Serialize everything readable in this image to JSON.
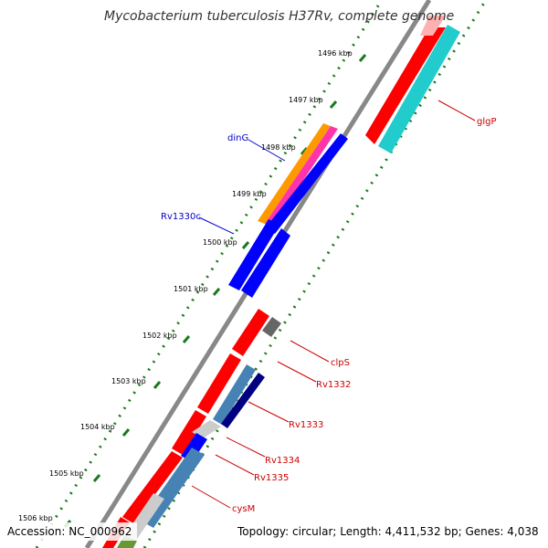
{
  "title": "Mycobacterium tuberculosis H37Rv, complete genome",
  "footer": {
    "accession": "Accession: NC_000962",
    "summary": "Topology: circular; Length: 4,411,532 bp; Genes: 4,038"
  },
  "ticks": [
    "1496 kbp",
    "1497 kbp",
    "1498 kbp",
    "1499 kbp",
    "1500 kbp",
    "1501 kbp",
    "1502 kbp",
    "1503 kbp",
    "1504 kbp",
    "1505 kbp",
    "1506 kbp"
  ],
  "gene_labels": [
    {
      "text": "glgP",
      "color": "#cc0000"
    },
    {
      "text": "dinG",
      "color": "#0000cc"
    },
    {
      "text": "Rv1330c",
      "color": "#0000cc"
    },
    {
      "text": "clpS",
      "color": "#cc0000"
    },
    {
      "text": "Rv1332",
      "color": "#cc0000"
    },
    {
      "text": "Rv1333",
      "color": "#cc0000"
    },
    {
      "text": "Rv1334",
      "color": "#cc0000"
    },
    {
      "text": "Rv1335",
      "color": "#cc0000"
    },
    {
      "text": "cysM",
      "color": "#cc0000"
    }
  ],
  "colors": {
    "backbone": "#888888",
    "gc_dots": "#1a7a1a",
    "cds_red": "#ff0000",
    "blue": "#0000ff",
    "cyan": "#22cccc",
    "orange": "#ff9900",
    "magenta": "#ff33aa",
    "steelblue": "#4682b4",
    "navy": "#000080",
    "grey": "#555555",
    "light": "#cccccc",
    "olive": "#669933"
  }
}
